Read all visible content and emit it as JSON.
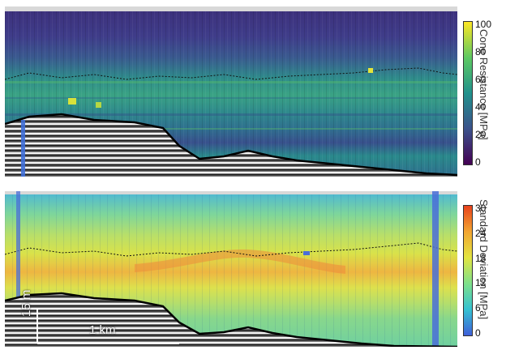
{
  "top_panel": {
    "colorbar": {
      "label": "Cone Resistance [MPa]",
      "ticks": [
        "100",
        "80",
        "60",
        "40",
        "20",
        "0"
      ],
      "min": 0,
      "max": 100,
      "colors": [
        "#440154",
        "#3b528b",
        "#21918c",
        "#5ec962",
        "#fde725"
      ]
    }
  },
  "bottom_panel": {
    "colorbar": {
      "label": "Standard Deviation [MPa]",
      "ticks": [
        "30",
        "24",
        "18",
        "12",
        "6",
        "0"
      ],
      "min": 0,
      "max": 30,
      "colors": [
        "#3f5fd8",
        "#35c2d2",
        "#7ee08a",
        "#e3e541",
        "#f2a531",
        "#e8421c"
      ]
    }
  },
  "scale_bar": {
    "vertical_label": "15 m",
    "horizontal_label": "1 km"
  }
}
